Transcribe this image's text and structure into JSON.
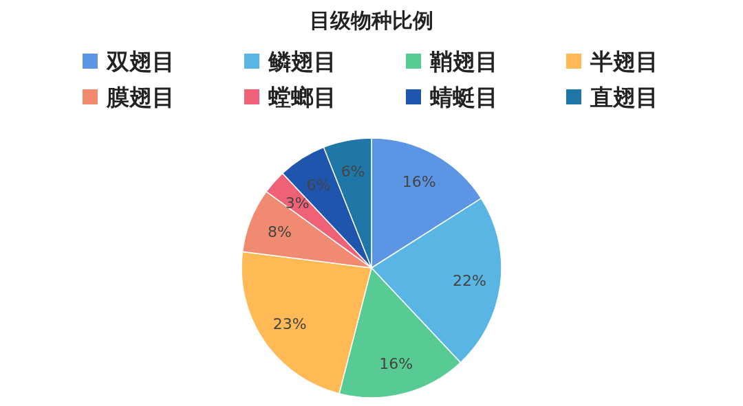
{
  "chart_data": {
    "type": "pie",
    "title": "目级物种比例",
    "categories": [
      "双翅目",
      "鳞翅目",
      "鞘翅目",
      "半翅目",
      "膜翅目",
      "螳螂目",
      "蜻蜓目",
      "直翅目"
    ],
    "values": [
      16,
      22,
      16,
      23,
      8,
      3,
      6,
      6
    ],
    "value_labels": [
      "16%",
      "22%",
      "16%",
      "23%",
      "8%",
      "3%",
      "6%",
      "6%"
    ],
    "colors": [
      "#5b95e3",
      "#59b5e3",
      "#57cb93",
      "#ffb955",
      "#f08a70",
      "#ee6177",
      "#1f55ad",
      "#1f77a8"
    ],
    "legend": "top"
  }
}
